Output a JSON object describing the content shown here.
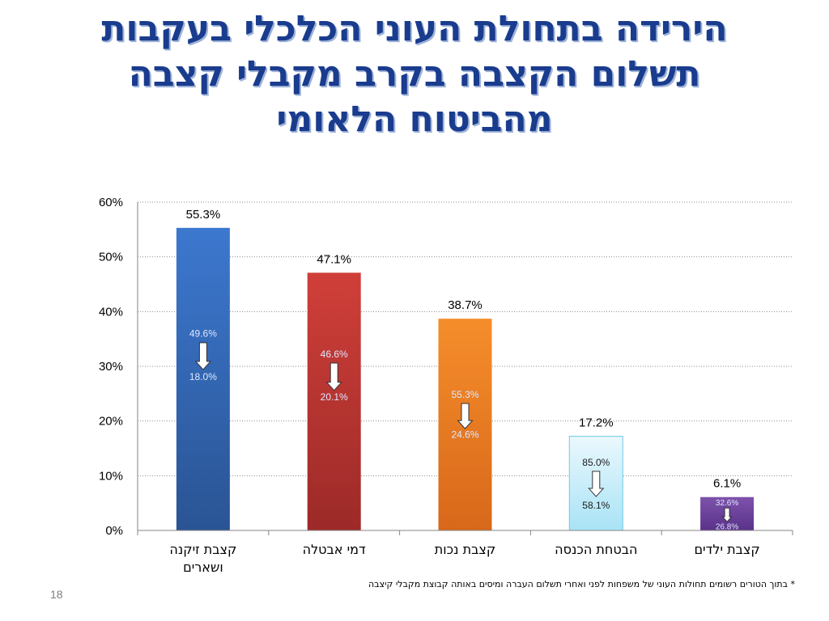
{
  "title": {
    "line1": "הירידה בתחולת העוני הכלכלי בעקבות",
    "line2": "תשלום הקצבה בקרב מקבלי קצבה",
    "line3": "מהביטוח הלאומי"
  },
  "footnote": "* בתוך הטורים רשומים תחולות העוני של משפחות לפני ואחרי תשלום העברה ומיסים באותה קבוצת מקבלי קיצבה",
  "page_number": "18",
  "chart_data": {
    "type": "bar",
    "title": "",
    "xlabel": "",
    "ylabel": "",
    "ylim": [
      0,
      60
    ],
    "yticks": [
      "0%",
      "10%",
      "20%",
      "30%",
      "40%",
      "50%",
      "60%"
    ],
    "grid": true,
    "categories": [
      [
        "קצבת זיקנה",
        "ושארים"
      ],
      [
        "דמי אבטלה"
      ],
      [
        "קצבת נכות"
      ],
      [
        "הבטחת הכנסה"
      ],
      [
        "קצבת ילדים"
      ]
    ],
    "values": [
      55.3,
      47.1,
      38.7,
      17.2,
      6.1
    ],
    "value_labels": [
      "55.3%",
      "47.1%",
      "38.7%",
      "17.2%",
      "6.1%"
    ],
    "poverty_before": [
      "49.6%",
      "46.6%",
      "55.3%",
      "85.0%",
      "32.6%"
    ],
    "poverty_after": [
      "18.0%",
      "20.1%",
      "24.6%",
      "58.1%",
      "26.8%"
    ],
    "colors": [
      "#2f5fa5",
      "#b8312e",
      "#ef7b1e",
      "#bfe9f7",
      "#6a3f9a"
    ]
  }
}
